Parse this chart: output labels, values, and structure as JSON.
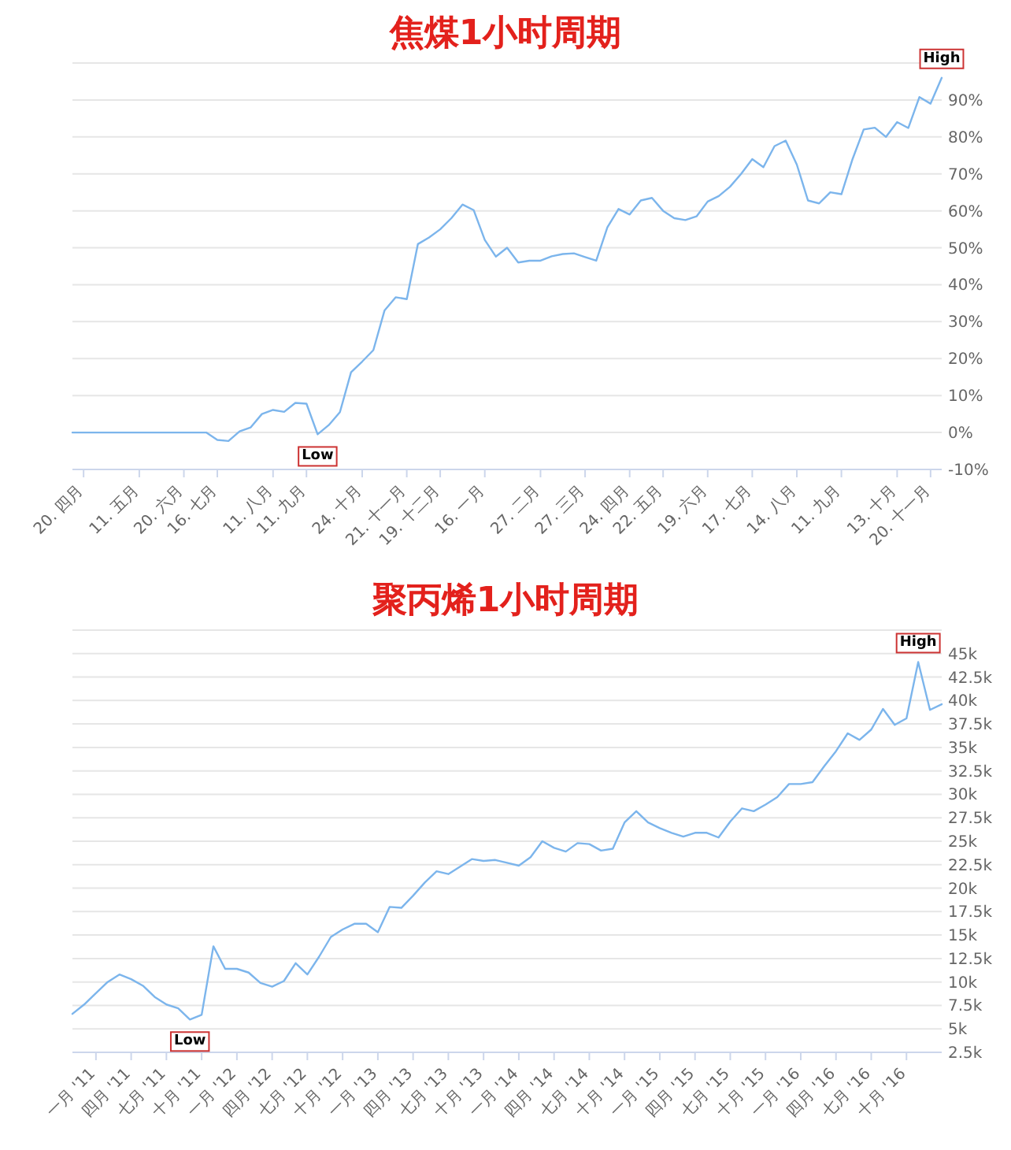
{
  "chart_data": [
    {
      "type": "line",
      "title": "焦煤1小时周期",
      "categories": [
        null,
        "20. 四月",
        null,
        null,
        null,
        null,
        "11. 五月",
        null,
        null,
        null,
        "20. 六月",
        null,
        null,
        "16. 七月",
        null,
        null,
        null,
        null,
        "11. 八月",
        null,
        null,
        "11. 九月",
        null,
        null,
        null,
        null,
        "24. 十月",
        null,
        null,
        null,
        "21. 十一月",
        null,
        null,
        "19. 十二月",
        null,
        null,
        null,
        "16. 一月",
        null,
        null,
        null,
        null,
        "27. 二月",
        null,
        null,
        null,
        "27. 三月",
        null,
        null,
        null,
        "24. 四月",
        null,
        null,
        "22. 五月",
        null,
        null,
        null,
        "19. 六月",
        null,
        null,
        null,
        "17. 七月",
        null,
        null,
        null,
        "14. 八月",
        null,
        null,
        null,
        "11. 九月",
        null,
        null,
        null,
        null,
        "13. 十月",
        null,
        null,
        "20. 十一月",
        null
      ],
      "series": [
        {
          "color": "#7cb5ec",
          "values": [
            0,
            0,
            0,
            0,
            0,
            0,
            0,
            0,
            0,
            0,
            0,
            0,
            0,
            -2.0,
            -2.3,
            0.3,
            1.4,
            5.0,
            6.1,
            5.6,
            8.0,
            7.8,
            -0.5,
            2.0,
            5.5,
            16.3,
            19.2,
            22.3,
            33.0,
            36.6,
            36.1,
            51.0,
            52.8,
            55.0,
            58.0,
            61.7,
            60.2,
            52.1,
            47.6,
            50.0,
            46.0,
            46.5,
            46.5,
            47.7,
            48.3,
            48.5,
            47.5,
            46.5,
            55.5,
            60.5,
            59.0,
            62.8,
            63.5,
            60.0,
            58.0,
            57.5,
            58.5,
            62.5,
            64.0,
            66.5,
            70.0,
            74.0,
            71.8,
            77.5,
            79.0,
            72.5,
            62.8,
            62.0,
            65.0,
            64.5,
            74.0,
            82.0,
            82.5,
            80.0,
            84.0,
            82.4,
            90.8,
            89.0,
            96.0
          ]
        }
      ],
      "ylim": [
        -10,
        100
      ],
      "yticks": [
        {
          "value": -10,
          "label": "-10%"
        },
        {
          "value": 0,
          "label": "0%"
        },
        {
          "value": 10,
          "label": "10%"
        },
        {
          "value": 20,
          "label": "20%"
        },
        {
          "value": 30,
          "label": "30%"
        },
        {
          "value": 40,
          "label": "40%"
        },
        {
          "value": 50,
          "label": "50%"
        },
        {
          "value": 60,
          "label": "60%"
        },
        {
          "value": 70,
          "label": "70%"
        },
        {
          "value": 80,
          "label": "80%"
        },
        {
          "value": 90,
          "label": "90%"
        },
        {
          "value": 100,
          "label": null
        }
      ],
      "grid": "y",
      "marker": "none",
      "annotations": [
        {
          "text": "Low",
          "y": -0.5
        },
        {
          "text": "High",
          "y": 96.0
        }
      ]
    },
    {
      "type": "line",
      "title": "聚丙烯1小时周期",
      "categories": [
        null,
        null,
        "一月 '11",
        null,
        null,
        "四月 '11",
        null,
        null,
        "七月 '11",
        null,
        null,
        "十月 '11",
        null,
        null,
        "一月 '12",
        null,
        null,
        "四月 '12",
        null,
        null,
        "七月 '12",
        null,
        null,
        "十月 '12",
        null,
        null,
        "一月 '13",
        null,
        null,
        "四月 '13",
        null,
        null,
        "七月 '13",
        null,
        null,
        "十月 '13",
        null,
        null,
        "一月 '14",
        null,
        null,
        "四月 '14",
        null,
        null,
        "七月 '14",
        null,
        null,
        "十月 '14",
        null,
        null,
        "一月 '15",
        null,
        null,
        "四月 '15",
        null,
        null,
        "七月 '15",
        null,
        null,
        "十月 '15",
        null,
        null,
        "一月 '16",
        null,
        null,
        "四月 '16",
        null,
        null,
        "七月 '16",
        null,
        null,
        "十月 '16",
        null,
        null,
        null
      ],
      "series": [
        {
          "color": "#7cb5ec",
          "values": [
            6600,
            7600,
            8800,
            10000,
            10800,
            10300,
            9600,
            8400,
            7600,
            7200,
            6000,
            6500,
            13800,
            11400,
            11400,
            11000,
            9900,
            9500,
            10100,
            12000,
            10800,
            12700,
            14800,
            15600,
            16200,
            16200,
            15300,
            18000,
            17900,
            19200,
            20600,
            21800,
            21500,
            22300,
            23100,
            22900,
            23000,
            22700,
            22400,
            23300,
            25000,
            24300,
            23900,
            24800,
            24700,
            24000,
            24200,
            27000,
            28200,
            27000,
            26400,
            25900,
            25500,
            25900,
            25900,
            25400,
            27100,
            28500,
            28200,
            28900,
            29700,
            31100,
            31100,
            31300,
            33000,
            34600,
            36500,
            35800,
            36900,
            39100,
            37400,
            38100,
            44100,
            39000,
            39600
          ]
        }
      ],
      "ylim": [
        2500,
        47500
      ],
      "yticks": [
        {
          "value": 2500,
          "label": "2.5k"
        },
        {
          "value": 5000,
          "label": "5k"
        },
        {
          "value": 7500,
          "label": "7.5k"
        },
        {
          "value": 10000,
          "label": "10k"
        },
        {
          "value": 12500,
          "label": "12.5k"
        },
        {
          "value": 15000,
          "label": "15k"
        },
        {
          "value": 17500,
          "label": "17.5k"
        },
        {
          "value": 20000,
          "label": "20k"
        },
        {
          "value": 22500,
          "label": "22.5k"
        },
        {
          "value": 25000,
          "label": "25k"
        },
        {
          "value": 27500,
          "label": "27.5k"
        },
        {
          "value": 30000,
          "label": "30k"
        },
        {
          "value": 32500,
          "label": "32.5k"
        },
        {
          "value": 35000,
          "label": "35k"
        },
        {
          "value": 37500,
          "label": "37.5k"
        },
        {
          "value": 40000,
          "label": "40k"
        },
        {
          "value": 42500,
          "label": "42.5k"
        },
        {
          "value": 45000,
          "label": "45k"
        },
        {
          "value": 47500,
          "label": null
        }
      ],
      "grid": "y",
      "marker": "none",
      "annotations": [
        {
          "text": "Low",
          "y": 6000
        },
        {
          "text": "High",
          "y": 44100
        }
      ]
    }
  ]
}
